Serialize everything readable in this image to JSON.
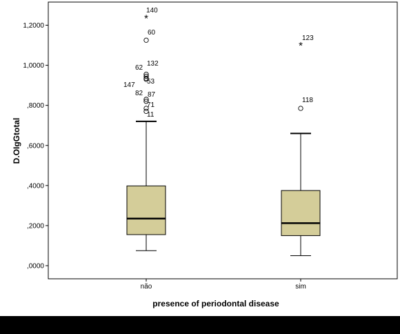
{
  "chart_data": {
    "type": "box",
    "xlabel": "presence of periodontal disease",
    "ylabel": "D.OIgGtotal",
    "ylim": [
      -0.06,
      1.29
    ],
    "yticks": [
      {
        "value": 0.0,
        "label": ",0000"
      },
      {
        "value": 0.2,
        "label": ",2000"
      },
      {
        "value": 0.4,
        "label": ",4000"
      },
      {
        "value": 0.6,
        "label": ",6000"
      },
      {
        "value": 0.8,
        "label": ",8000"
      },
      {
        "value": 1.0,
        "label": "1,0000"
      },
      {
        "value": 1.2,
        "label": "1,2000"
      }
    ],
    "box_color": "#d4cd99",
    "categories": [
      "não",
      "sim"
    ],
    "boxes": [
      {
        "category": "não",
        "whisker_low": 0.075,
        "q1": 0.155,
        "median": 0.235,
        "q3": 0.398,
        "whisker_high": 0.72,
        "outliers": [
          {
            "value": 1.235,
            "label": "140",
            "marker": "star"
          },
          {
            "value": 1.125,
            "label": "60",
            "marker": "circle"
          },
          {
            "value": 0.955,
            "label": "132",
            "marker": "circle"
          },
          {
            "value": 0.945,
            "label": "62",
            "marker": "circle"
          },
          {
            "value": 0.935,
            "label": "53",
            "marker": "circle"
          },
          {
            "value": 0.93,
            "label": "147",
            "marker": "circle"
          },
          {
            "value": 0.83,
            "label": "87",
            "marker": "circle"
          },
          {
            "value": 0.82,
            "label": "82",
            "marker": "circle"
          },
          {
            "value": 0.785,
            "label": "71",
            "marker": "circle"
          },
          {
            "value": 0.77,
            "label": "11",
            "marker": "circle"
          }
        ]
      },
      {
        "category": "sim",
        "whisker_low": 0.05,
        "q1": 0.15,
        "median": 0.212,
        "q3": 0.375,
        "whisker_high": 0.66,
        "outliers": [
          {
            "value": 1.098,
            "label": "123",
            "marker": "star"
          },
          {
            "value": 0.785,
            "label": "118",
            "marker": "circle"
          }
        ]
      }
    ]
  }
}
